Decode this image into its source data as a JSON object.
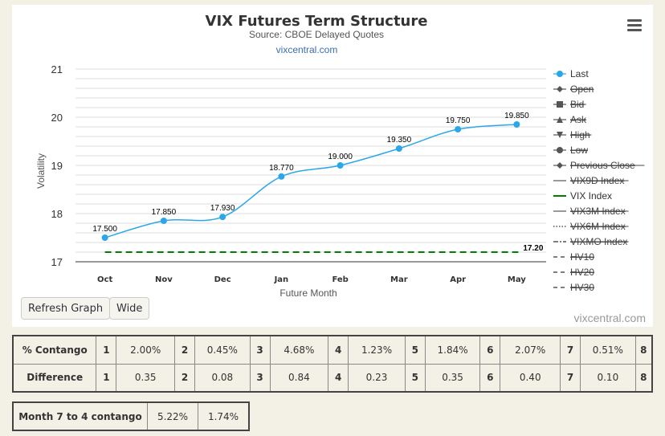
{
  "chart_data": {
    "type": "line",
    "title": "VIX Futures Term Structure",
    "subtitle": "Source: CBOE Delayed Quotes",
    "link": "vixcentral.com",
    "xlabel": "Future Month",
    "ylabel": "Volatility",
    "categories": [
      "Oct",
      "Nov",
      "Dec",
      "Jan",
      "Feb",
      "Mar",
      "Apr",
      "May"
    ],
    "ylim": [
      17,
      21
    ],
    "yticks": [
      "17",
      "18",
      "19",
      "20",
      "21"
    ],
    "grid": true,
    "legend_position": "right",
    "series": [
      {
        "name": "Last",
        "values": [
          17.5,
          17.85,
          17.93,
          18.77,
          19.0,
          19.35,
          19.75,
          19.85
        ],
        "labels": [
          "17.500",
          "17.850",
          "17.930",
          "18.770",
          "19.000",
          "19.350",
          "19.750",
          "19.850"
        ],
        "color": "#2aa7ea"
      },
      {
        "name": "VIX Index",
        "values": [
          17.2,
          17.2,
          17.2,
          17.2,
          17.2,
          17.2,
          17.2,
          17.2
        ],
        "end_label": "17.20",
        "color": "#008000"
      }
    ],
    "legend": [
      {
        "name": "Last",
        "symbol": "circle-line",
        "active": true
      },
      {
        "name": "Open",
        "symbol": "diamond",
        "active": false
      },
      {
        "name": "Bid",
        "symbol": "square",
        "active": false
      },
      {
        "name": "Ask",
        "symbol": "triangle",
        "active": false
      },
      {
        "name": "High",
        "symbol": "triangle-down",
        "active": false
      },
      {
        "name": "Low",
        "symbol": "circle",
        "active": false
      },
      {
        "name": "Previous Close",
        "symbol": "diamond",
        "active": false
      },
      {
        "name": "VIX9D Index",
        "symbol": "line",
        "active": false
      },
      {
        "name": "VIX Index",
        "symbol": "line-green",
        "active": true
      },
      {
        "name": "VIX3M Index",
        "symbol": "line",
        "active": false
      },
      {
        "name": "VIX6M Index",
        "symbol": "dotted",
        "active": false
      },
      {
        "name": "VIXMO Index",
        "symbol": "dashdot",
        "active": false
      },
      {
        "name": "HV10",
        "symbol": "dash",
        "active": false
      },
      {
        "name": "HV20",
        "symbol": "dash",
        "active": false
      },
      {
        "name": "HV30",
        "symbol": "dash",
        "active": false
      }
    ],
    "watermark": "vixcentral.com"
  },
  "buttons": {
    "refresh": "Refresh Graph",
    "wide": "Wide"
  },
  "contango_table": {
    "rows": [
      {
        "label": "% Contango",
        "cells": [
          [
            "1",
            "2.00%"
          ],
          [
            "2",
            "0.45%"
          ],
          [
            "3",
            "4.68%"
          ],
          [
            "4",
            "1.23%"
          ],
          [
            "5",
            "1.84%"
          ],
          [
            "6",
            "2.07%"
          ],
          [
            "7",
            "0.51%"
          ],
          [
            "8",
            ""
          ]
        ]
      },
      {
        "label": "Difference",
        "cells": [
          [
            "1",
            "0.35"
          ],
          [
            "2",
            "0.08"
          ],
          [
            "3",
            "0.84"
          ],
          [
            "4",
            "0.23"
          ],
          [
            "5",
            "0.35"
          ],
          [
            "6",
            "0.40"
          ],
          [
            "7",
            "0.10"
          ],
          [
            "8",
            ""
          ]
        ]
      }
    ]
  },
  "month_table": {
    "label": "Month 7 to 4 contango",
    "values": [
      "5.22%",
      "1.74%"
    ]
  }
}
